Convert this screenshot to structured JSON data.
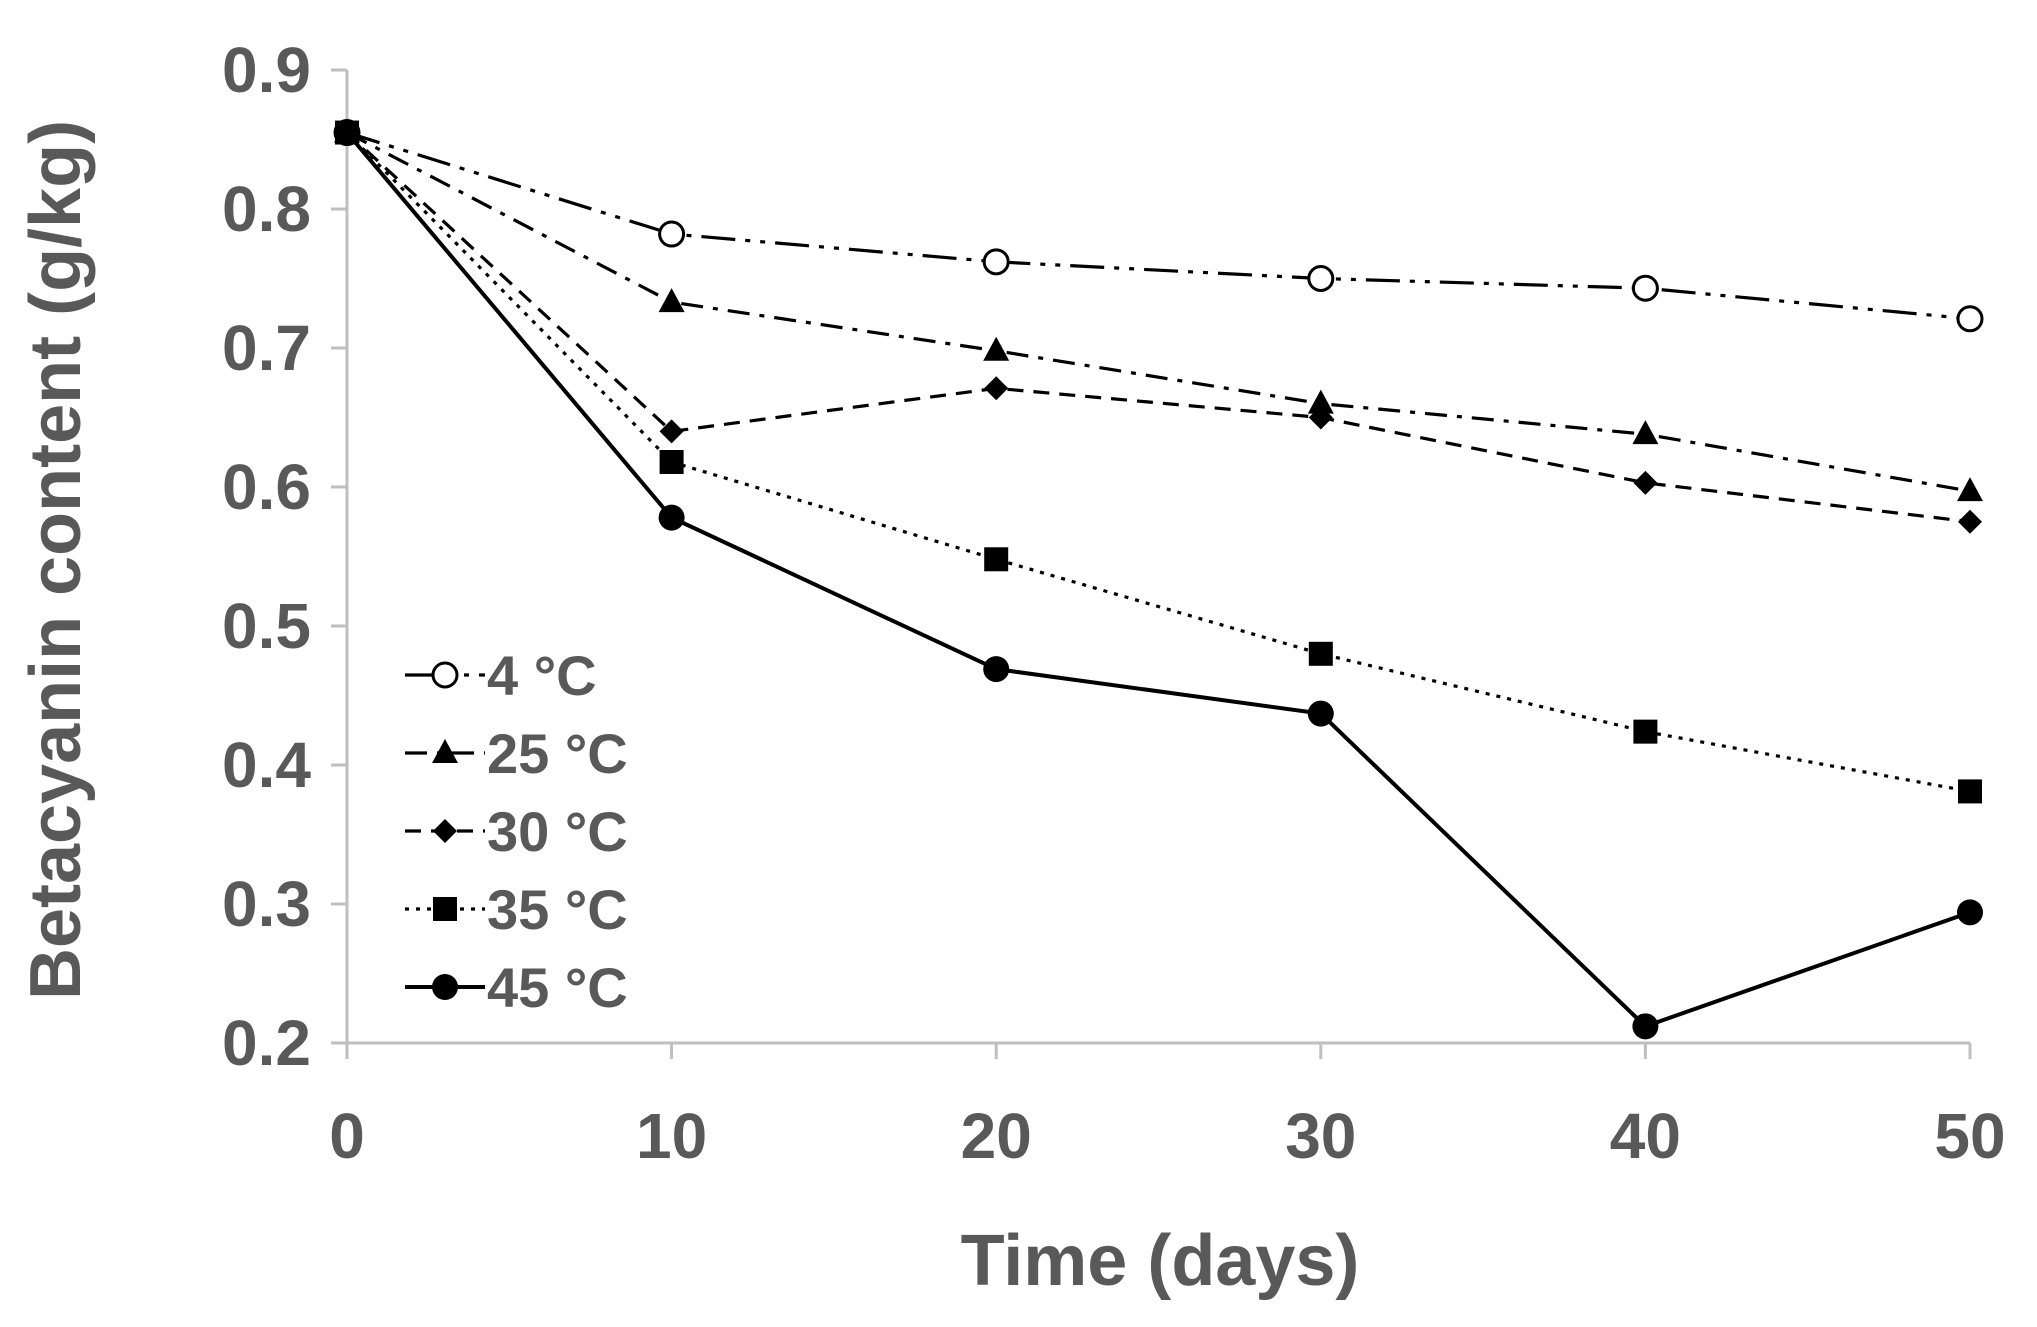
{
  "chart_data": {
    "type": "line",
    "title": "",
    "xlabel": "Time (days)",
    "ylabel": "Betacyanin content (g/kg)",
    "x": [
      0,
      10,
      20,
      30,
      40,
      50
    ],
    "xlim": [
      0,
      50
    ],
    "ylim": [
      0.2,
      0.9
    ],
    "x_ticks": [
      "0",
      "10",
      "20",
      "30",
      "40",
      "50"
    ],
    "y_ticks": [
      "0.2",
      "0.3",
      "0.4",
      "0.5",
      "0.6",
      "0.7",
      "0.8",
      "0.9"
    ],
    "grid": false,
    "legend_position": "bottom-left",
    "series": [
      {
        "name": "4 °C",
        "marker": "open-circle",
        "line_style": "long-dash-dot-dot",
        "values": [
          0.855,
          0.782,
          0.762,
          0.75,
          0.743,
          0.721
        ]
      },
      {
        "name": "25 °C",
        "marker": "triangle",
        "line_style": "dash-dot",
        "values": [
          0.855,
          0.733,
          0.698,
          0.66,
          0.638,
          0.597
        ]
      },
      {
        "name": "30 °C",
        "marker": "diamond",
        "line_style": "dash",
        "values": [
          0.855,
          0.64,
          0.671,
          0.65,
          0.603,
          0.575
        ]
      },
      {
        "name": "35 °C",
        "marker": "square",
        "line_style": "dot",
        "values": [
          0.855,
          0.618,
          0.548,
          0.48,
          0.424,
          0.381
        ]
      },
      {
        "name": "45 °C",
        "marker": "filled-circle",
        "line_style": "solid",
        "values": [
          0.855,
          0.578,
          0.469,
          0.437,
          0.212,
          0.294
        ]
      }
    ]
  },
  "colors": {
    "series": "#000000",
    "axis": "#bfbfbf",
    "text": "#595959",
    "background": "#ffffff"
  }
}
